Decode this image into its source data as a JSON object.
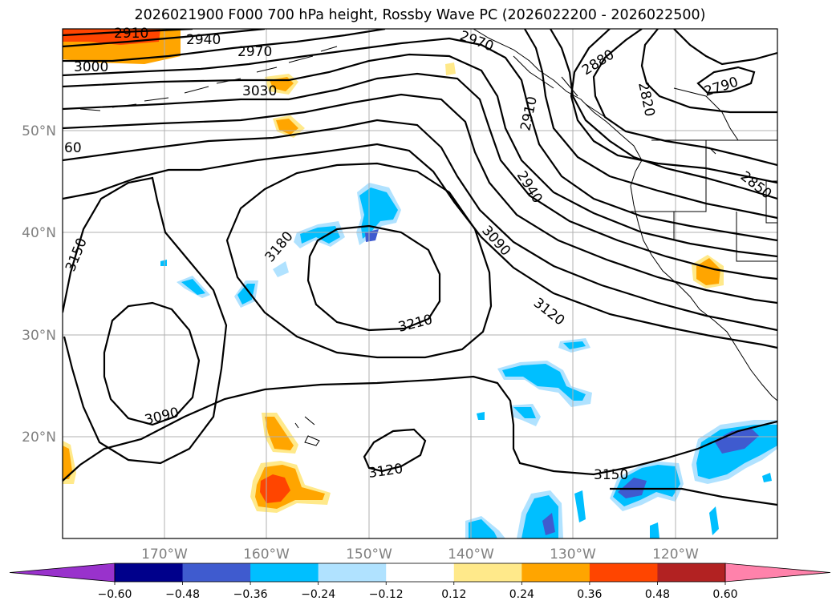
{
  "title": "2026021900 F000 700 hPa height, Rossby Wave PC (2026022200 - 2026022500)",
  "map": {
    "lat_labels": [
      "50°N",
      "40°N",
      "30°N",
      "20°N"
    ],
    "lon_labels": [
      "170°W",
      "160°W",
      "150°W",
      "140°W",
      "130°W",
      "120°W"
    ],
    "contour_labels": [
      "2910",
      "2940",
      "2970",
      "3000",
      "3030",
      "2970",
      "2880",
      "2820",
      "2790",
      "2910",
      "60",
      "2940",
      "2850",
      "3090",
      "3150",
      "3180",
      "3120",
      "3210",
      "3090",
      "3120",
      "3150"
    ]
  },
  "colorbar": {
    "ticks": [
      "−0.60",
      "−0.48",
      "−0.36",
      "−0.24",
      "−0.12",
      "0.12",
      "0.24",
      "0.36",
      "0.48",
      "0.60"
    ],
    "colors": [
      "#9932cc",
      "#00008b",
      "#3f5bcf",
      "#00bfff",
      "#b0e2ff",
      "#ffffff",
      "#ffe98a",
      "#ffa500",
      "#ff4500",
      "#b22222",
      "#ff82ab"
    ],
    "extend_low_color": "#9932cc",
    "extend_high_color": "#ff82ab"
  }
}
